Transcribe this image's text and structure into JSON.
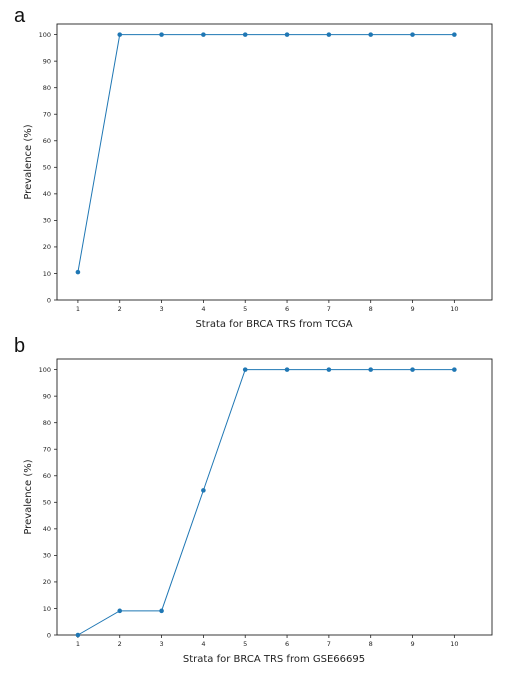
{
  "chart_data": [
    {
      "panel": "a",
      "type": "line",
      "xlabel": "Strata for BRCA TRS from TCGA",
      "ylabel": "Prevalence (%)",
      "x": [
        1,
        2,
        3,
        4,
        5,
        6,
        7,
        8,
        9,
        10
      ],
      "values": [
        10.5,
        100,
        100,
        100,
        100,
        100,
        100,
        100,
        100,
        100
      ],
      "xlim": [
        0.5,
        10.9
      ],
      "ylim": [
        0,
        104
      ],
      "yticks": [
        0,
        10,
        20,
        30,
        40,
        50,
        60,
        70,
        80,
        90,
        100
      ],
      "xticks": [
        1,
        2,
        3,
        4,
        5,
        6,
        7,
        8,
        9,
        10
      ],
      "color": "#1f77b4",
      "grid": false
    },
    {
      "panel": "b",
      "type": "line",
      "xlabel": "Strata for BRCA TRS from GSE66695",
      "ylabel": "Prevalence (%)",
      "x": [
        1,
        2,
        3,
        4,
        5,
        6,
        7,
        8,
        9,
        10
      ],
      "values": [
        0,
        9.1,
        9.1,
        54.5,
        100,
        100,
        100,
        100,
        100,
        100
      ],
      "xlim": [
        0.5,
        10.9
      ],
      "ylim": [
        0,
        104
      ],
      "yticks": [
        0,
        10,
        20,
        30,
        40,
        50,
        60,
        70,
        80,
        90,
        100
      ],
      "xticks": [
        1,
        2,
        3,
        4,
        5,
        6,
        7,
        8,
        9,
        10
      ],
      "color": "#1f77b4",
      "grid": false
    }
  ]
}
